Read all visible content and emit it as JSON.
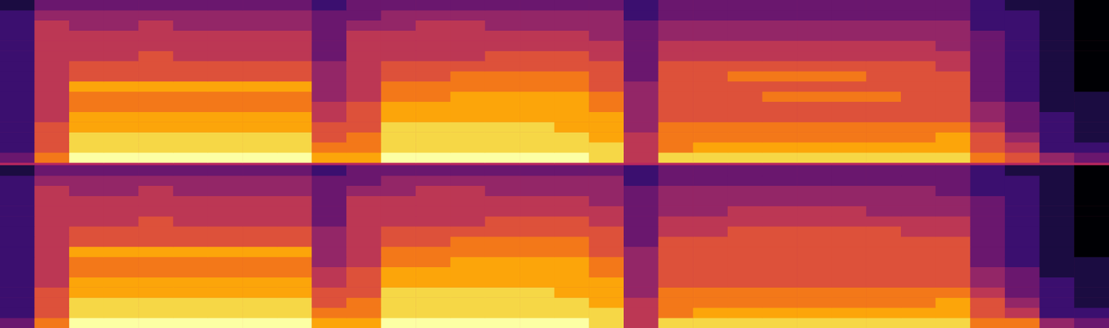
{
  "chart_data": [
    {
      "type": "heatmap",
      "tick_labels": false,
      "color_range": [
        0,
        10
      ],
      "cells": [
        [
          3,
          7,
          10,
          10,
          10,
          10,
          10,
          10,
          10,
          8,
          8,
          10,
          10,
          10,
          10,
          10,
          10,
          9,
          5,
          9,
          9,
          9,
          9,
          9,
          9,
          9,
          9,
          9,
          7,
          6,
          4,
          3
        ],
        [
          2,
          6,
          9,
          9,
          9,
          9,
          9,
          9,
          9,
          7,
          7,
          9,
          9,
          9,
          9,
          9,
          9,
          9,
          5,
          7,
          8,
          8,
          8,
          8,
          8,
          8,
          8,
          8,
          6,
          5,
          2,
          2
        ],
        [
          2,
          6,
          9,
          9,
          9,
          9,
          9,
          9,
          9,
          6,
          7,
          9,
          9,
          9,
          9,
          9,
          9,
          8,
          5,
          7,
          7,
          7,
          7,
          7,
          7,
          7,
          7,
          8,
          6,
          4,
          2,
          1
        ],
        [
          2,
          6,
          8,
          8,
          8,
          8,
          8,
          8,
          8,
          6,
          6,
          9,
          9,
          9,
          9,
          9,
          8,
          8,
          4,
          7,
          7,
          7,
          7,
          7,
          7,
          7,
          7,
          7,
          5,
          3,
          2,
          1
        ],
        [
          2,
          5,
          8,
          8,
          8,
          8,
          8,
          8,
          8,
          5,
          6,
          8,
          8,
          8,
          8,
          8,
          8,
          8,
          4,
          6,
          6,
          6,
          6,
          6,
          6,
          6,
          6,
          6,
          4,
          3,
          2,
          1
        ],
        [
          2,
          5,
          7,
          7,
          7,
          7,
          7,
          7,
          7,
          5,
          6,
          8,
          8,
          8,
          8,
          8,
          8,
          7,
          4,
          6,
          6,
          6,
          6,
          6,
          6,
          6,
          6,
          6,
          4,
          3,
          1,
          1
        ],
        [
          2,
          5,
          7,
          7,
          7,
          7,
          7,
          7,
          7,
          4,
          5,
          7,
          7,
          8,
          8,
          8,
          8,
          7,
          4,
          6,
          6,
          6,
          7,
          7,
          7,
          7,
          6,
          6,
          3,
          2,
          1,
          1
        ],
        [
          2,
          5,
          8,
          8,
          8,
          8,
          8,
          8,
          8,
          4,
          5,
          7,
          7,
          7,
          7,
          7,
          7,
          6,
          4,
          6,
          6,
          6,
          6,
          6,
          6,
          6,
          6,
          6,
          3,
          2,
          1,
          0
        ],
        [
          2,
          5,
          6,
          6,
          6,
          6,
          6,
          6,
          6,
          4,
          5,
          6,
          6,
          7,
          7,
          7,
          7,
          6,
          3,
          6,
          6,
          7,
          7,
          7,
          7,
          6,
          6,
          6,
          3,
          2,
          1,
          0
        ],
        [
          2,
          5,
          6,
          6,
          6,
          6,
          6,
          6,
          6,
          4,
          5,
          6,
          6,
          6,
          6,
          6,
          6,
          6,
          3,
          6,
          6,
          6,
          6,
          6,
          6,
          6,
          6,
          5,
          3,
          2,
          1,
          0
        ],
        [
          2,
          5,
          5,
          5,
          6,
          5,
          5,
          5,
          5,
          3,
          5,
          5,
          5,
          5,
          6,
          6,
          6,
          5,
          3,
          5,
          5,
          5,
          5,
          5,
          5,
          5,
          5,
          5,
          3,
          2,
          1,
          0
        ],
        [
          2,
          5,
          5,
          5,
          5,
          5,
          5,
          5,
          5,
          3,
          5,
          5,
          5,
          5,
          5,
          5,
          5,
          5,
          3,
          5,
          5,
          5,
          5,
          5,
          5,
          5,
          5,
          4,
          3,
          2,
          1,
          0
        ],
        [
          2,
          5,
          5,
          5,
          5,
          5,
          5,
          5,
          5,
          3,
          5,
          5,
          5,
          5,
          5,
          5,
          5,
          4,
          3,
          4,
          4,
          4,
          4,
          4,
          4,
          4,
          4,
          4,
          3,
          2,
          1,
          0
        ],
        [
          2,
          5,
          4,
          4,
          5,
          4,
          4,
          4,
          4,
          3,
          4,
          4,
          5,
          5,
          4,
          4,
          4,
          4,
          3,
          4,
          4,
          4,
          4,
          4,
          4,
          4,
          4,
          4,
          2,
          2,
          1,
          0
        ],
        [
          2,
          4,
          4,
          4,
          4,
          4,
          4,
          4,
          4,
          3,
          3,
          4,
          4,
          4,
          4,
          4,
          4,
          4,
          2,
          3,
          3,
          3,
          3,
          3,
          3,
          3,
          3,
          3,
          2,
          2,
          1,
          0
        ],
        [
          1,
          3,
          3,
          3,
          3,
          3,
          3,
          3,
          3,
          2,
          3,
          3,
          3,
          3,
          3,
          3,
          3,
          3,
          2,
          3,
          3,
          3,
          3,
          3,
          3,
          3,
          3,
          3,
          2,
          1,
          1,
          0
        ]
      ]
    },
    {
      "type": "heatmap",
      "tick_labels": false,
      "color_range": [
        0,
        10
      ],
      "cells": [
        [
          3,
          7,
          10,
          10,
          10,
          10,
          10,
          10,
          10,
          8,
          8,
          10,
          10,
          10,
          10,
          10,
          10,
          9,
          5,
          9,
          9,
          9,
          9,
          9,
          9,
          9,
          9,
          9,
          7,
          7,
          4,
          3
        ],
        [
          2,
          6,
          9,
          9,
          9,
          9,
          9,
          9,
          9,
          7,
          7,
          9,
          9,
          9,
          9,
          9,
          9,
          9,
          5,
          7,
          8,
          8,
          8,
          8,
          8,
          8,
          8,
          8,
          6,
          5,
          2,
          2
        ],
        [
          2,
          6,
          9,
          9,
          9,
          9,
          9,
          9,
          9,
          6,
          7,
          9,
          9,
          9,
          9,
          9,
          9,
          8,
          5,
          7,
          7,
          7,
          7,
          7,
          7,
          7,
          7,
          8,
          6,
          4,
          2,
          1
        ],
        [
          2,
          6,
          8,
          8,
          8,
          8,
          8,
          8,
          8,
          6,
          6,
          9,
          9,
          9,
          9,
          9,
          8,
          8,
          4,
          7,
          7,
          7,
          7,
          7,
          7,
          7,
          7,
          7,
          5,
          3,
          2,
          1
        ],
        [
          2,
          5,
          8,
          8,
          8,
          8,
          8,
          8,
          8,
          5,
          6,
          8,
          8,
          8,
          8,
          8,
          8,
          8,
          4,
          6,
          6,
          6,
          6,
          6,
          6,
          6,
          6,
          6,
          4,
          3,
          2,
          1
        ],
        [
          2,
          5,
          7,
          7,
          7,
          7,
          7,
          7,
          7,
          5,
          6,
          8,
          8,
          8,
          8,
          8,
          8,
          7,
          4,
          6,
          6,
          6,
          6,
          6,
          6,
          6,
          6,
          6,
          4,
          3,
          1,
          1
        ],
        [
          2,
          5,
          7,
          7,
          7,
          7,
          7,
          7,
          7,
          4,
          5,
          7,
          7,
          8,
          8,
          8,
          8,
          7,
          4,
          6,
          6,
          6,
          6,
          6,
          6,
          6,
          6,
          6,
          3,
          2,
          1,
          1
        ],
        [
          2,
          5,
          8,
          8,
          8,
          8,
          8,
          8,
          8,
          4,
          5,
          7,
          7,
          7,
          7,
          7,
          7,
          6,
          4,
          6,
          6,
          6,
          6,
          6,
          6,
          6,
          6,
          6,
          3,
          2,
          1,
          0
        ],
        [
          2,
          5,
          6,
          6,
          6,
          6,
          6,
          6,
          6,
          4,
          5,
          6,
          6,
          7,
          7,
          7,
          7,
          6,
          3,
          6,
          6,
          6,
          6,
          6,
          6,
          6,
          6,
          6,
          3,
          2,
          1,
          0
        ],
        [
          2,
          5,
          6,
          6,
          6,
          6,
          6,
          6,
          6,
          4,
          5,
          6,
          6,
          6,
          6,
          6,
          6,
          6,
          3,
          5,
          5,
          6,
          6,
          6,
          6,
          6,
          5,
          5,
          3,
          2,
          1,
          0
        ],
        [
          2,
          5,
          5,
          5,
          6,
          5,
          5,
          5,
          5,
          3,
          5,
          5,
          5,
          5,
          6,
          6,
          6,
          5,
          3,
          5,
          5,
          5,
          5,
          5,
          5,
          5,
          5,
          5,
          3,
          2,
          1,
          0
        ],
        [
          2,
          5,
          5,
          5,
          5,
          5,
          5,
          5,
          5,
          3,
          5,
          5,
          5,
          5,
          5,
          5,
          5,
          5,
          3,
          4,
          4,
          5,
          5,
          5,
          5,
          4,
          4,
          4,
          3,
          2,
          1,
          0
        ],
        [
          2,
          5,
          5,
          5,
          5,
          5,
          5,
          5,
          5,
          3,
          5,
          5,
          5,
          5,
          5,
          5,
          5,
          4,
          3,
          4,
          4,
          4,
          4,
          4,
          4,
          4,
          4,
          4,
          3,
          2,
          1,
          0
        ],
        [
          2,
          5,
          4,
          4,
          5,
          4,
          4,
          4,
          4,
          3,
          4,
          4,
          5,
          5,
          4,
          4,
          4,
          4,
          3,
          4,
          4,
          4,
          4,
          4,
          4,
          4,
          4,
          3,
          2,
          2,
          1,
          0
        ],
        [
          2,
          4,
          4,
          4,
          4,
          4,
          4,
          4,
          4,
          3,
          3,
          4,
          4,
          4,
          4,
          4,
          4,
          4,
          2,
          3,
          3,
          3,
          3,
          3,
          3,
          3,
          3,
          3,
          2,
          2,
          1,
          0
        ],
        [
          1,
          3,
          3,
          3,
          3,
          3,
          3,
          3,
          3,
          2,
          3,
          3,
          3,
          3,
          3,
          3,
          3,
          3,
          2,
          3,
          3,
          3,
          3,
          3,
          3,
          3,
          3,
          3,
          2,
          1,
          1,
          0
        ]
      ]
    }
  ]
}
